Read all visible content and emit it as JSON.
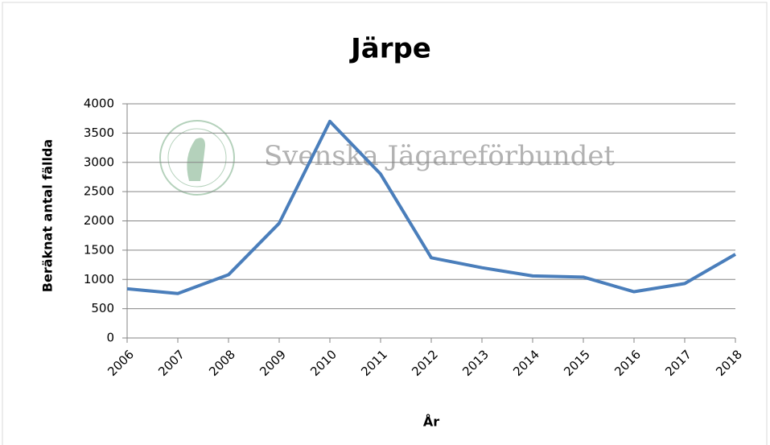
{
  "chart_data": {
    "type": "line",
    "title": "Järpe",
    "watermark": "Svenska Jägareförbundet",
    "x_label": "År",
    "y_label": "Beräknat antal fällda",
    "categories": [
      "2006",
      "2007",
      "2008",
      "2009",
      "2010",
      "2011",
      "2012",
      "2013",
      "2014",
      "2015",
      "2016",
      "2017",
      "2018"
    ],
    "series": [
      {
        "name": "Järpe",
        "color": "#4a7ebb",
        "values": [
          840,
          760,
          1080,
          1960,
          3700,
          2800,
          1370,
          1200,
          1060,
          1040,
          790,
          930,
          1430
        ]
      }
    ],
    "ylim": [
      0,
      4000
    ],
    "yticks": [
      0,
      500,
      1000,
      1500,
      2000,
      2500,
      3000,
      3500,
      4000
    ],
    "grid": true
  }
}
